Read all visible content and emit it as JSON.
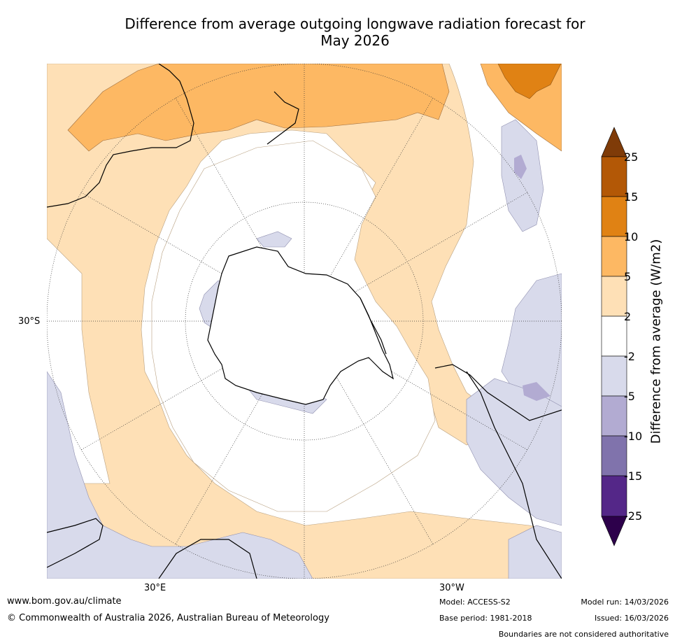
{
  "title": {
    "line1": "Difference from average outgoing longwave radiation forecast for",
    "line2": "May 2026"
  },
  "map": {
    "projection": "south polar stereographic",
    "graticule_labels": {
      "lat": "30°S",
      "lon_left": "30°E",
      "lon_right": "30°W"
    }
  },
  "colorbar": {
    "title": "Difference from average (W/m2)",
    "tick_labels": [
      "25",
      "15",
      "10",
      "5",
      "2",
      "-2",
      "-5",
      "-10",
      "-15",
      "-25"
    ],
    "bins": [
      {
        "range": "> 25",
        "color": "#7f3b08"
      },
      {
        "range": "15 to 25",
        "color": "#b35806"
      },
      {
        "range": "10 to 15",
        "color": "#e08214"
      },
      {
        "range": "5 to 10",
        "color": "#fdb863"
      },
      {
        "range": "2 to 5",
        "color": "#fee0b6"
      },
      {
        "range": "-2 to 2",
        "color": "#ffffff"
      },
      {
        "range": "-5 to -2",
        "color": "#d8daeb"
      },
      {
        "range": "-10 to -5",
        "color": "#b2abd2"
      },
      {
        "range": "-15 to -10",
        "color": "#8073ac"
      },
      {
        "range": "-25 to -15",
        "color": "#542788"
      },
      {
        "range": "< -25",
        "color": "#2d004b"
      }
    ]
  },
  "footer": {
    "website": "www.bom.gov.au/climate",
    "copyright": "© Commonwealth of Australia 2026, Australian Bureau of Meteorology",
    "model": "Model: ACCESS-S2",
    "base_period": "Base period: 1981-2018",
    "model_run": "Model run: 14/03/2026",
    "issued": "Issued: 16/03/2026",
    "disclaimer": "Boundaries are not considered authoritative"
  }
}
